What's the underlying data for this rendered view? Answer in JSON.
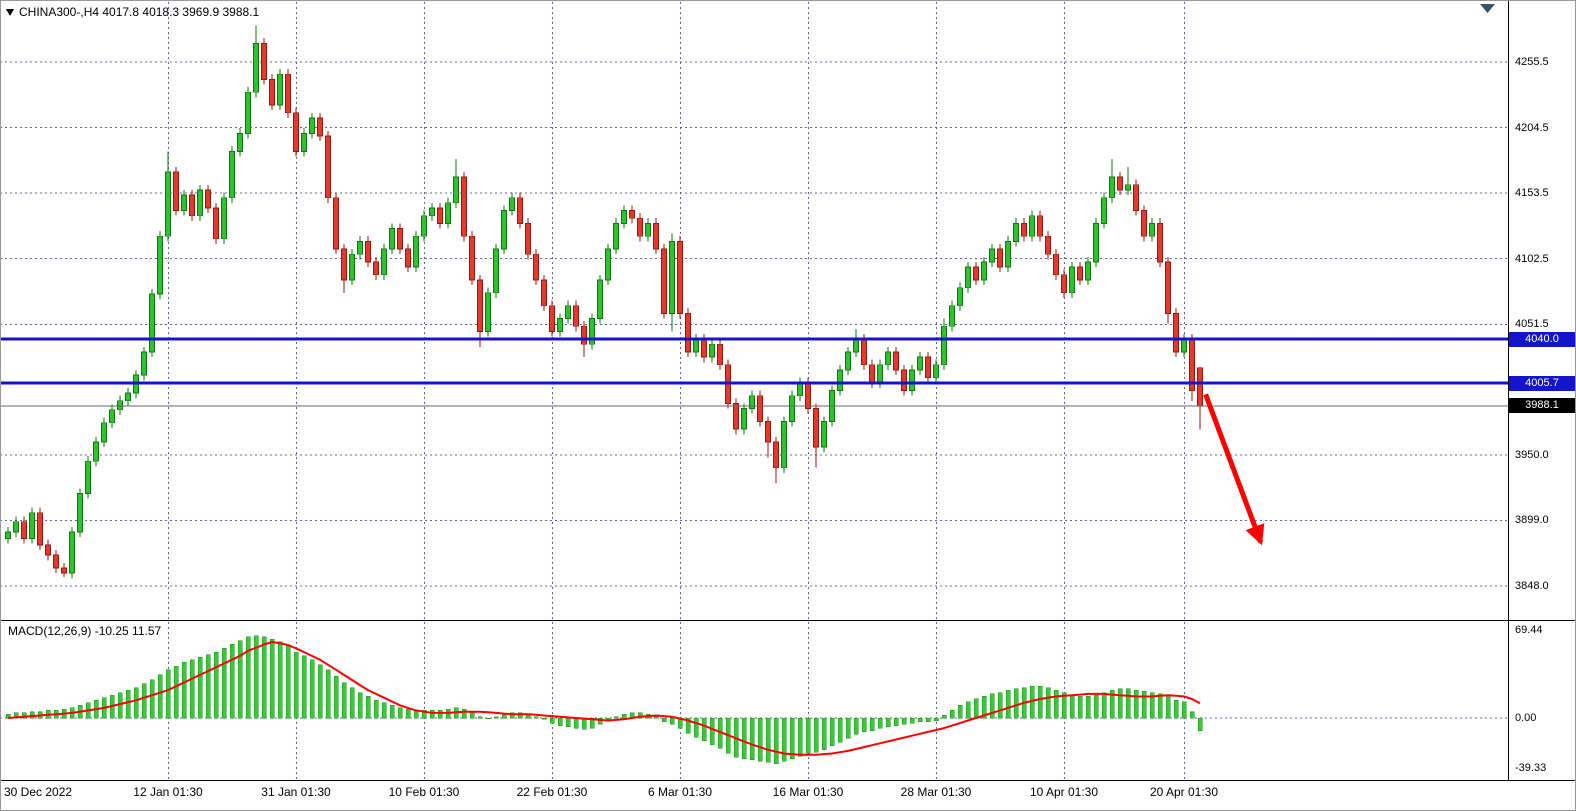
{
  "header": {
    "symbol_line": "CHINA300-,H4  4017.8 4018.3 3969.9 3988.1"
  },
  "colors": {
    "up_fill": "#2FC12F",
    "up_edge": "#0B7A0B",
    "down_fill": "#E23A2E",
    "down_edge": "#9A150B",
    "level_blue": "#1414CC",
    "arrow_red": "#FF0000",
    "hist_green": "#33CC33",
    "signal_red": "#FF0000",
    "grid": "#4A4A7D",
    "last_price_badge": "#000000"
  },
  "chart_data": {
    "type": "candlestick",
    "symbol": "CHINA300-",
    "timeframe": "H4",
    "current_bar_ohlc": {
      "open": 4017.8,
      "high": 4018.3,
      "low": 3969.9,
      "close": 3988.1
    },
    "price_ticks": [
      4255.5,
      4204.5,
      4153.5,
      4102.5,
      4051.5,
      3950.0,
      3899.0,
      3848.0
    ],
    "levels": [
      {
        "name": "resistance-level",
        "price": 4040.0,
        "label": "4040.0",
        "color": "#1414CC",
        "width": 3
      },
      {
        "name": "support-level",
        "price": 4005.7,
        "label": "4005.7",
        "color": "#1414CC",
        "width": 3
      },
      {
        "name": "last-price",
        "price": 3988.1,
        "label": "3988.1",
        "color": "#666666",
        "width": 1,
        "badge_bg": "#000000"
      }
    ],
    "time_ticks": [
      {
        "label": "30 Dec 2022",
        "bar": 0,
        "align": "left"
      },
      {
        "label": "12 Jan 01:30",
        "bar": 20
      },
      {
        "label": "31 Jan 01:30",
        "bar": 36
      },
      {
        "label": "10 Feb 01:30",
        "bar": 52
      },
      {
        "label": "22 Feb 01:30",
        "bar": 68
      },
      {
        "label": "6 Mar 01:30",
        "bar": 84
      },
      {
        "label": "16 Mar 01:30",
        "bar": 100
      },
      {
        "label": "28 Mar 01:30",
        "bar": 116
      },
      {
        "label": "10 Apr 01:30",
        "bar": 132
      },
      {
        "label": "20 Apr 01:30",
        "bar": 147
      }
    ],
    "candles": [
      [
        3885,
        3894,
        3881,
        3890
      ],
      [
        3890,
        3902,
        3886,
        3898
      ],
      [
        3898,
        3902,
        3881,
        3885
      ],
      [
        3885,
        3909,
        3881,
        3905
      ],
      [
        3905,
        3909,
        3876,
        3880
      ],
      [
        3880,
        3884,
        3868,
        3872
      ],
      [
        3872,
        3876,
        3858,
        3862
      ],
      [
        3862,
        3866,
        3855,
        3858
      ],
      [
        3858,
        3894,
        3854,
        3890
      ],
      [
        3890,
        3924,
        3886,
        3920
      ],
      [
        3920,
        3949,
        3916,
        3945
      ],
      [
        3945,
        3964,
        3941,
        3960
      ],
      [
        3960,
        3979,
        3956,
        3975
      ],
      [
        3975,
        3989,
        3971,
        3985
      ],
      [
        3985,
        3996,
        3981,
        3992
      ],
      [
        3992,
        4002,
        3988,
        3998
      ],
      [
        3998,
        4016,
        3994,
        4012
      ],
      [
        4012,
        4034,
        4008,
        4030
      ],
      [
        4030,
        4079,
        4026,
        4075
      ],
      [
        4075,
        4124,
        4071,
        4120
      ],
      [
        4120,
        4186,
        4116,
        4170
      ],
      [
        4170,
        4174,
        4136,
        4140
      ],
      [
        4140,
        4156,
        4136,
        4152
      ],
      [
        4152,
        4156,
        4132,
        4136
      ],
      [
        4136,
        4160,
        4132,
        4156
      ],
      [
        4156,
        4160,
        4138,
        4142
      ],
      [
        4142,
        4146,
        4114,
        4118
      ],
      [
        4118,
        4154,
        4114,
        4150
      ],
      [
        4150,
        4190,
        4146,
        4186
      ],
      [
        4186,
        4204,
        4182,
        4200
      ],
      [
        4200,
        4236,
        4196,
        4232
      ],
      [
        4232,
        4284,
        4228,
        4270
      ],
      [
        4270,
        4274,
        4238,
        4242
      ],
      [
        4242,
        4246,
        4218,
        4222
      ],
      [
        4222,
        4250,
        4218,
        4246
      ],
      [
        4246,
        4250,
        4212,
        4216
      ],
      [
        4216,
        4220,
        4182,
        4186
      ],
      [
        4186,
        4204,
        4182,
        4200
      ],
      [
        4200,
        4216,
        4196,
        4212
      ],
      [
        4212,
        4216,
        4194,
        4198
      ],
      [
        4198,
        4202,
        4146,
        4150
      ],
      [
        4150,
        4154,
        4106,
        4110
      ],
      [
        4110,
        4114,
        4076,
        4086
      ],
      [
        4086,
        4110,
        4082,
        4106
      ],
      [
        4106,
        4120,
        4102,
        4116
      ],
      [
        4116,
        4120,
        4096,
        4100
      ],
      [
        4100,
        4104,
        4086,
        4090
      ],
      [
        4090,
        4114,
        4086,
        4110
      ],
      [
        4110,
        4130,
        4106,
        4126
      ],
      [
        4126,
        4130,
        4106,
        4110
      ],
      [
        4110,
        4114,
        4092,
        4096
      ],
      [
        4096,
        4124,
        4092,
        4120
      ],
      [
        4120,
        4140,
        4116,
        4136
      ],
      [
        4136,
        4146,
        4132,
        4142
      ],
      [
        4142,
        4146,
        4126,
        4130
      ],
      [
        4130,
        4150,
        4126,
        4146
      ],
      [
        4146,
        4180,
        4142,
        4166
      ],
      [
        4166,
        4170,
        4116,
        4120
      ],
      [
        4120,
        4124,
        4082,
        4086
      ],
      [
        4086,
        4090,
        4034,
        4046
      ],
      [
        4046,
        4080,
        4042,
        4076
      ],
      [
        4076,
        4114,
        4072,
        4110
      ],
      [
        4110,
        4144,
        4106,
        4140
      ],
      [
        4140,
        4154,
        4136,
        4150
      ],
      [
        4150,
        4154,
        4126,
        4130
      ],
      [
        4130,
        4134,
        4102,
        4106
      ],
      [
        4106,
        4110,
        4082,
        4086
      ],
      [
        4086,
        4090,
        4062,
        4066
      ],
      [
        4066,
        4070,
        4042,
        4046
      ],
      [
        4046,
        4060,
        4042,
        4056
      ],
      [
        4056,
        4070,
        4052,
        4066
      ],
      [
        4066,
        4070,
        4046,
        4050
      ],
      [
        4050,
        4054,
        4026,
        4036
      ],
      [
        4036,
        4060,
        4032,
        4056
      ],
      [
        4056,
        4090,
        4052,
        4086
      ],
      [
        4086,
        4114,
        4082,
        4110
      ],
      [
        4110,
        4134,
        4106,
        4130
      ],
      [
        4130,
        4144,
        4126,
        4140
      ],
      [
        4140,
        4144,
        4130,
        4134
      ],
      [
        4134,
        4138,
        4116,
        4120
      ],
      [
        4120,
        4134,
        4116,
        4130
      ],
      [
        4130,
        4134,
        4106,
        4110
      ],
      [
        4110,
        4114,
        4056,
        4060
      ],
      [
        4060,
        4122,
        4046,
        4116
      ],
      [
        4116,
        4120,
        4056,
        4060
      ],
      [
        4060,
        4064,
        4026,
        4030
      ],
      [
        4030,
        4044,
        4026,
        4040
      ],
      [
        4040,
        4044,
        4022,
        4026
      ],
      [
        4026,
        4040,
        4022,
        4036
      ],
      [
        4036,
        4040,
        4016,
        4020
      ],
      [
        4020,
        4024,
        3986,
        3990
      ],
      [
        3990,
        3994,
        3966,
        3970
      ],
      [
        3970,
        3990,
        3966,
        3986
      ],
      [
        3986,
        4000,
        3982,
        3996
      ],
      [
        3996,
        4000,
        3972,
        3976
      ],
      [
        3976,
        3980,
        3948,
        3960
      ],
      [
        3960,
        3964,
        3928,
        3940
      ],
      [
        3940,
        3980,
        3936,
        3976
      ],
      [
        3976,
        4000,
        3972,
        3996
      ],
      [
        3996,
        4010,
        3992,
        4006
      ],
      [
        4006,
        4010,
        3982,
        3986
      ],
      [
        3986,
        3990,
        3940,
        3956
      ],
      [
        3956,
        3980,
        3952,
        3976
      ],
      [
        3976,
        4004,
        3972,
        4000
      ],
      [
        4000,
        4020,
        3996,
        4016
      ],
      [
        4016,
        4034,
        4012,
        4030
      ],
      [
        4030,
        4048,
        4026,
        4040
      ],
      [
        4040,
        4044,
        4016,
        4020
      ],
      [
        4020,
        4024,
        4002,
        4006
      ],
      [
        4006,
        4024,
        4002,
        4020
      ],
      [
        4020,
        4034,
        4016,
        4030
      ],
      [
        4030,
        4034,
        4012,
        4016
      ],
      [
        4016,
        4020,
        3996,
        4000
      ],
      [
        4000,
        4020,
        3996,
        4016
      ],
      [
        4016,
        4030,
        4012,
        4026
      ],
      [
        4026,
        4030,
        4006,
        4010
      ],
      [
        4010,
        4024,
        4006,
        4020
      ],
      [
        4020,
        4056,
        4016,
        4050
      ],
      [
        4050,
        4070,
        4046,
        4066
      ],
      [
        4066,
        4084,
        4062,
        4080
      ],
      [
        4080,
        4100,
        4076,
        4096
      ],
      [
        4096,
        4100,
        4082,
        4086
      ],
      [
        4086,
        4104,
        4082,
        4100
      ],
      [
        4100,
        4114,
        4096,
        4110
      ],
      [
        4110,
        4114,
        4092,
        4096
      ],
      [
        4096,
        4120,
        4092,
        4116
      ],
      [
        4116,
        4134,
        4112,
        4130
      ],
      [
        4130,
        4134,
        4116,
        4120
      ],
      [
        4120,
        4140,
        4116,
        4136
      ],
      [
        4136,
        4140,
        4116,
        4120
      ],
      [
        4120,
        4124,
        4102,
        4106
      ],
      [
        4106,
        4110,
        4086,
        4090
      ],
      [
        4090,
        4094,
        4072,
        4076
      ],
      [
        4076,
        4100,
        4072,
        4096
      ],
      [
        4096,
        4100,
        4082,
        4086
      ],
      [
        4086,
        4104,
        4082,
        4100
      ],
      [
        4100,
        4134,
        4096,
        4130
      ],
      [
        4130,
        4154,
        4126,
        4150
      ],
      [
        4150,
        4180,
        4146,
        4166
      ],
      [
        4166,
        4170,
        4152,
        4156
      ],
      [
        4156,
        4174,
        4152,
        4160
      ],
      [
        4160,
        4164,
        4136,
        4140
      ],
      [
        4140,
        4144,
        4116,
        4120
      ],
      [
        4120,
        4134,
        4116,
        4130
      ],
      [
        4130,
        4134,
        4096,
        4100
      ],
      [
        4100,
        4104,
        4052,
        4060
      ],
      [
        4060,
        4064,
        4026,
        4030
      ],
      [
        4030,
        4044,
        4026,
        4040
      ],
      [
        4040,
        4044,
        3992,
        4000
      ],
      [
        4017.8,
        4018.3,
        3969.9,
        3988.1
      ]
    ],
    "macd": {
      "label": "MACD(12,26,9) -10.25 11.57",
      "params": [
        12,
        26,
        9
      ],
      "main_last": -10.25,
      "signal_last": 11.57,
      "ticks": [
        {
          "label": "69.44",
          "value": 69.44
        },
        {
          "label": "0.00",
          "value": 0
        },
        {
          "label": "-39.33",
          "value": -39.33
        }
      ],
      "histogram": [
        3,
        4,
        4,
        5,
        5,
        6,
        6,
        7,
        8,
        10,
        12,
        14,
        16,
        18,
        20,
        22,
        24,
        27,
        30,
        34,
        38,
        41,
        44,
        46,
        48,
        50,
        52,
        55,
        58,
        61,
        64,
        65,
        64,
        62,
        60,
        57,
        52,
        49,
        46,
        42,
        38,
        33,
        28,
        24,
        20,
        17,
        14,
        12,
        10,
        8,
        7,
        6,
        6,
        6,
        6,
        7,
        8,
        7,
        4,
        1,
        0,
        1,
        3,
        4,
        4,
        3,
        1,
        -1,
        -4,
        -6,
        -7,
        -8,
        -9,
        -8,
        -5,
        -2,
        1,
        3,
        4,
        4,
        3,
        1,
        -3,
        -5,
        -8,
        -12,
        -15,
        -18,
        -21,
        -24,
        -28,
        -31,
        -32,
        -33,
        -34,
        -35,
        -36,
        -34,
        -32,
        -30,
        -28,
        -27,
        -25,
        -22,
        -19,
        -16,
        -13,
        -11,
        -10,
        -8,
        -7,
        -6,
        -5,
        -4,
        -3,
        -3,
        -2,
        2,
        6,
        10,
        13,
        15,
        17,
        19,
        20,
        22,
        23,
        24,
        25,
        25,
        24,
        22,
        20,
        18,
        17,
        17,
        18,
        20,
        22,
        23,
        23,
        22,
        21,
        20,
        19,
        17,
        14,
        13,
        5,
        -10.25
      ],
      "signal": [
        0,
        0.5,
        1,
        1.5,
        2,
        2.5,
        3,
        3.5,
        4,
        5,
        6,
        7,
        8,
        9.5,
        11,
        12.5,
        14,
        16,
        18,
        20,
        22,
        25,
        28,
        31,
        34,
        37,
        40,
        43,
        46,
        49,
        53,
        55.5,
        58,
        60,
        59,
        57.5,
        55,
        52,
        49,
        46,
        42,
        38,
        34,
        30,
        26,
        22,
        19,
        16,
        13,
        10,
        8,
        6,
        5,
        4,
        4,
        4,
        4.5,
        5,
        5,
        5,
        4.5,
        4,
        3.5,
        3,
        3,
        3,
        2.5,
        2,
        1.5,
        1,
        0.5,
        0,
        -0.5,
        -1,
        -1.5,
        -2,
        -1.5,
        -1,
        0,
        1,
        1.5,
        2,
        1.5,
        1,
        -0.5,
        -2,
        -4,
        -6,
        -8.5,
        -11,
        -13.5,
        -16,
        -18.5,
        -21,
        -23,
        -25,
        -26.5,
        -28,
        -28.5,
        -29,
        -29,
        -29,
        -28.5,
        -28,
        -27,
        -26,
        -24.5,
        -23,
        -21.5,
        -20,
        -18.5,
        -17,
        -15.5,
        -14,
        -12.5,
        -11,
        -9.5,
        -8,
        -6,
        -4,
        -2,
        0,
        2,
        4,
        6,
        8,
        10,
        12,
        13.5,
        15,
        16,
        17,
        17.5,
        18,
        18.5,
        19,
        19,
        19,
        18.5,
        18,
        17.5,
        17,
        17,
        17,
        17.5,
        18,
        17.5,
        17,
        15,
        11.57
      ]
    },
    "arrow": {
      "from": {
        "bar": 149.7,
        "price": 3997
      },
      "to": {
        "bar": 156.6,
        "price": 3882
      },
      "color": "#FF0000"
    }
  }
}
